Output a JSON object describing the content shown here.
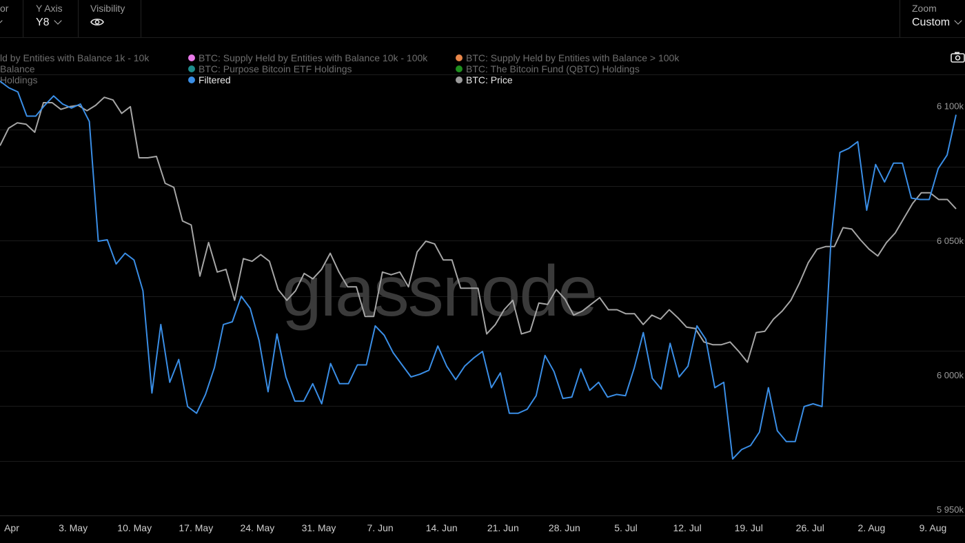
{
  "toolbar": {
    "color_label": "or",
    "yaxis_label": "Y Axis",
    "yaxis_value": "Y8",
    "visibility_label": "Visibility",
    "zoom_label": "Zoom",
    "zoom_value": "Custom"
  },
  "legend": [
    {
      "text": "ld by Entities with Balance 1k - 10k",
      "color": "#6b6b6b",
      "active": false
    },
    {
      "text": "BTC: Supply Held by Entities with Balance 10k - 100k",
      "color": "#e879e8",
      "active": false
    },
    {
      "text": "BTC: Supply Held by Entities with Balance > 100k",
      "color": "#e8874a",
      "active": false
    },
    {
      "text": "Balance",
      "color": "",
      "active": false
    },
    {
      "text": "BTC: Purpose Bitcoin ETF Holdings",
      "color": "#1e8c8c",
      "active": false
    },
    {
      "text": "BTC: The Bitcoin Fund (QBTC) Holdings",
      "color": "#1f8f1f",
      "active": false
    },
    {
      "text": "Holdings",
      "color": "",
      "active": false
    },
    {
      "text": "Filtered",
      "color": "#3a8ee6",
      "active": true
    },
    {
      "text": "BTC: Price",
      "color": "#9a9a9a",
      "active": true
    }
  ],
  "watermark": "glassnode",
  "chart_data": {
    "type": "line",
    "x_labels": [
      "Apr",
      "3. May",
      "10. May",
      "17. May",
      "24. May",
      "31. May",
      "7. Jun",
      "14. Jun",
      "21. Jun",
      "28. Jun",
      "5. Jul",
      "12. Jul",
      "19. Jul",
      "26. Jul",
      "2. Aug",
      "9. Aug"
    ],
    "y_ticks": [
      "6 100k",
      "6 050k",
      "6 000k",
      "5 950k"
    ],
    "y_tick_values": [
      6100000,
      6050000,
      6000000,
      5950000
    ],
    "ylim": [
      5950000,
      6114000
    ],
    "grid": true,
    "series": [
      {
        "name": "Filtered",
        "color": "#3a8ee6",
        "values": [
          6111500,
          6109000,
          6107500,
          6098500,
          6098500,
          6102500,
          6106000,
          6103000,
          6101500,
          6103000,
          6096500,
          6052000,
          6052500,
          6043500,
          6047500,
          6045000,
          6033500,
          5995500,
          6021000,
          5999500,
          6008000,
          5990500,
          5988000,
          5995000,
          6005000,
          6021000,
          6022000,
          6031500,
          6027000,
          6015000,
          5996000,
          6017500,
          6001500,
          5992500,
          5992500,
          5999000,
          5991500,
          6006500,
          5999000,
          5999000,
          6006000,
          6006000,
          6020500,
          6017000,
          6010500,
          6006000,
          6001500,
          6002500,
          6004000,
          6013000,
          6005500,
          6000500,
          6005500,
          6008500,
          6011000,
          5997500,
          6003000,
          5988000,
          5988000,
          5989500,
          5994500,
          6009500,
          6003500,
          5993500,
          5994000,
          6004500,
          5996500,
          5999500,
          5994000,
          5995000,
          5994500,
          6005000,
          6018000,
          6001000,
          5997000,
          6014000,
          6001500,
          6005500,
          6020500,
          6015500,
          5997500,
          5999500,
          5971000,
          5974500,
          5976000,
          5981000,
          5997500,
          5981500,
          5977500,
          5977500,
          5990500,
          5991500,
          5990500,
          6052000,
          6085000,
          6086500,
          6089000,
          6063500,
          6080500,
          6074000,
          6081000,
          6081000,
          6068000,
          6067500,
          6067500,
          6079000,
          6084000,
          6099000
        ]
      },
      {
        "name": "BTC: Price",
        "color": "#a6a6a6",
        "values": [
          6087500,
          6094000,
          6096000,
          6095500,
          6092500,
          6103500,
          6103500,
          6101000,
          6102000,
          6102500,
          6100500,
          6102500,
          6105500,
          6104500,
          6099500,
          6102000,
          6083000,
          6083000,
          6083500,
          6073500,
          6072000,
          6059500,
          6058000,
          6039000,
          6051500,
          6040500,
          6041500,
          6030000,
          6045500,
          6044500,
          6047000,
          6044500,
          6034000,
          6030000,
          6033500,
          6040000,
          6038000,
          6041500,
          6047500,
          6040500,
          6035000,
          6035000,
          6024000,
          6024000,
          6040500,
          6039500,
          6040500,
          6035000,
          6048000,
          6052000,
          6051000,
          6045000,
          6045000,
          6034500,
          6034500,
          6034500,
          6017500,
          6021000,
          6026500,
          6030000,
          6017500,
          6018500,
          6029000,
          6028500,
          6034000,
          6030500,
          6024500,
          6026000,
          6028500,
          6031000,
          6026500,
          6026500,
          6025000,
          6025000,
          6021000,
          6024500,
          6023000,
          6026500,
          6023500,
          6020000,
          6019500,
          6014500,
          6013500,
          6013500,
          6014500,
          6011000,
          6007000,
          6018000,
          6018500,
          6023000,
          6026000,
          6030000,
          6036500,
          6044000,
          6049000,
          6050000,
          6050000,
          6057000,
          6056500,
          6052500,
          6049000,
          6046500,
          6051500,
          6055000,
          6060500,
          6066000,
          6070000,
          6070000,
          6067500,
          6067500,
          6064000
        ]
      }
    ]
  }
}
